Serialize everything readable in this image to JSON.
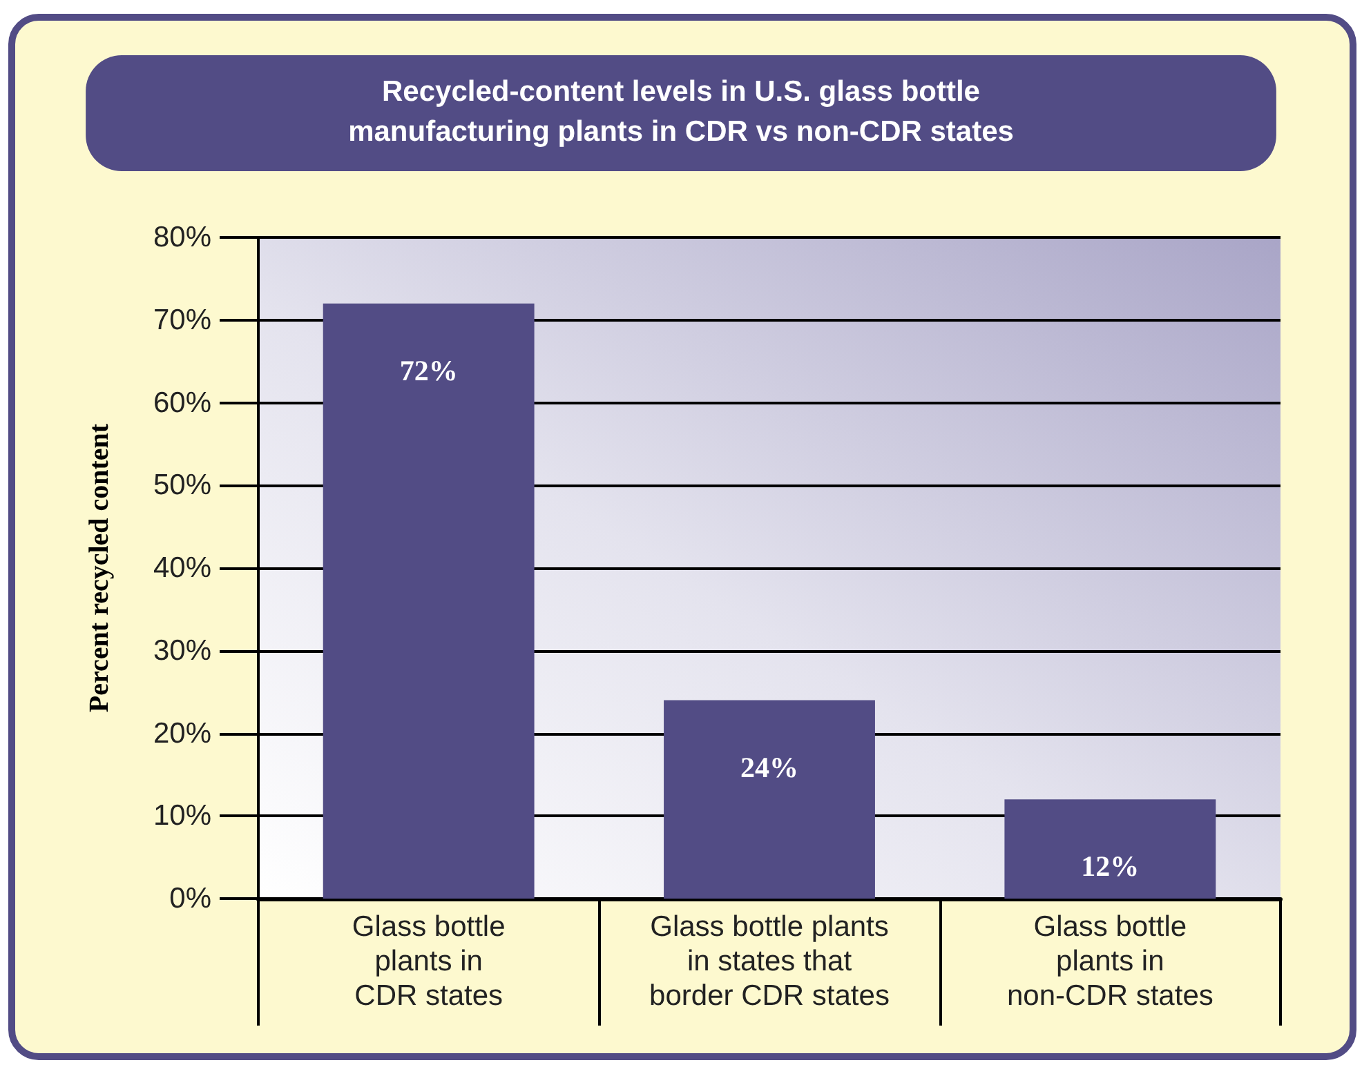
{
  "chart_data": {
    "type": "bar",
    "title": "Recycled-content levels in U.S. glass bottle\nmanufacturing plants in CDR vs non-CDR states",
    "ylabel": "Percent recycled content",
    "categories": [
      "Glass bottle\nplants in\nCDR states",
      "Glass bottle plants\nin states that\nborder CDR states",
      "Glass bottle\nplants in\nnon-CDR states"
    ],
    "values": [
      72,
      24,
      12
    ],
    "color": "#524c85",
    "value_labels": [
      "72%",
      "24%",
      "12%"
    ],
    "ylim": [
      0,
      80
    ],
    "yticks": [
      {
        "value": 0,
        "label": "0%"
      },
      {
        "value": 10,
        "label": "10%"
      },
      {
        "value": 20,
        "label": "20%"
      },
      {
        "value": 30,
        "label": "30%"
      },
      {
        "value": 40,
        "label": "40%"
      },
      {
        "value": 50,
        "label": "50%"
      },
      {
        "value": 60,
        "label": "60%"
      },
      {
        "value": 70,
        "label": "70%"
      },
      {
        "value": 80,
        "label": "80%"
      }
    ],
    "grid": "y"
  }
}
